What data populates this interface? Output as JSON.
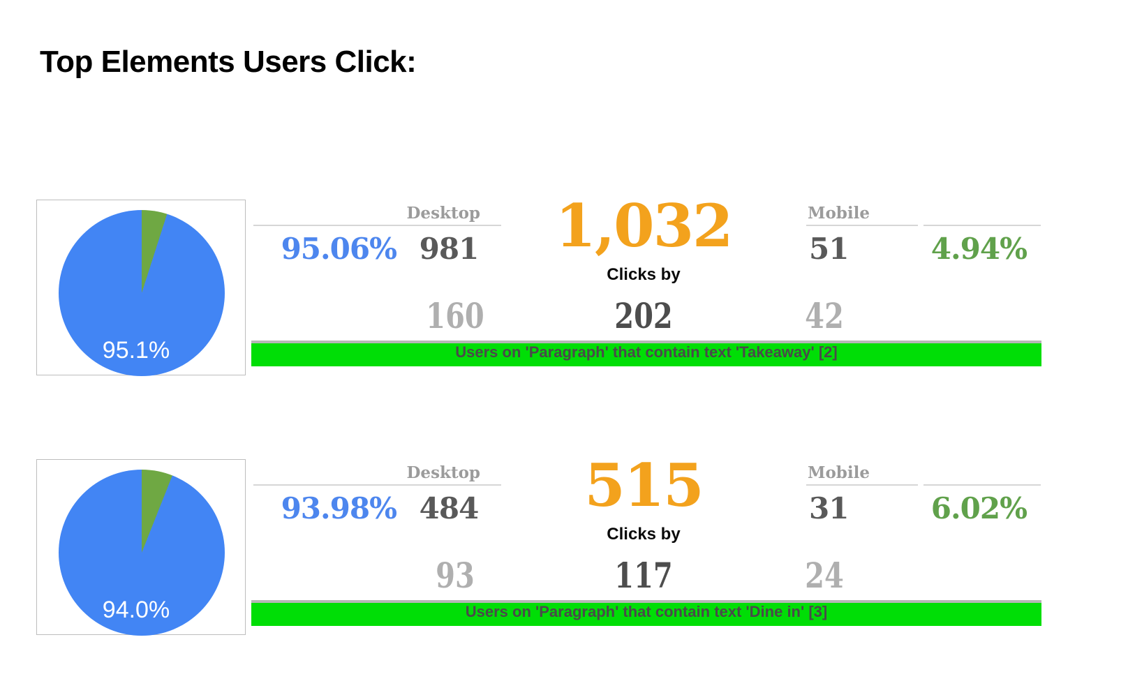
{
  "title": "Top Elements Users Click:",
  "colors": {
    "pie_blue": "#4285F4",
    "pie_green": "#6FA843",
    "accent_orange": "#F3A21D",
    "pct_blue": "#4D86EE",
    "pct_green": "#60A14B",
    "dark_gray": "#595959",
    "light_gray": "#AFAFAF",
    "header_gray": "#9B9B9B",
    "line_gray": "#D6D6D6",
    "banner_line": "#B6B6B6",
    "card_border": "#BDBDBD",
    "banner_green": "#00DE06",
    "banner_text": "#4A4A4A"
  },
  "rows": [
    {
      "pie": {
        "label": "95.1%",
        "green_pct": 4.94
      },
      "desktop": {
        "header": "Desktop",
        "pct": "95.06%",
        "clicks": "981",
        "users": "160"
      },
      "total": {
        "clicks": "1,032",
        "label": "Clicks by",
        "users": "202"
      },
      "mobile": {
        "header": "Mobile",
        "clicks": "51",
        "pct": "4.94%",
        "users": "42"
      },
      "banner": "Users on 'Paragraph' that contain text 'Takeaway' [2]"
    },
    {
      "pie": {
        "label": "94.0%",
        "green_pct": 6.02
      },
      "desktop": {
        "header": "Desktop",
        "pct": "93.98%",
        "clicks": "484",
        "users": "93"
      },
      "total": {
        "clicks": "515",
        "label": "Clicks by",
        "users": "117"
      },
      "mobile": {
        "header": "Mobile",
        "clicks": "31",
        "pct": "6.02%",
        "users": "24"
      },
      "banner": "Users on 'Paragraph' that contain text 'Dine in' [3]"
    }
  ],
  "chart_data": [
    {
      "type": "pie",
      "title": "Users on 'Paragraph' that contain text 'Takeaway' [2]",
      "labels": [
        "Desktop",
        "Mobile"
      ],
      "values": [
        95.06,
        4.94
      ],
      "colors": [
        "#4285F4",
        "#6FA843"
      ],
      "pie_label": "95.1%",
      "legend_position": "none",
      "scorecards": {
        "desktop_share_pct": 95.06,
        "desktop_clicks": 981,
        "total_clicks": 1032,
        "mobile_clicks": 51,
        "mobile_share_pct": 4.94,
        "desktop_users": 160,
        "total_users": 202,
        "mobile_users": 42
      }
    },
    {
      "type": "pie",
      "title": "Users on 'Paragraph' that contain text 'Dine in' [3]",
      "labels": [
        "Desktop",
        "Mobile"
      ],
      "values": [
        93.98,
        6.02
      ],
      "colors": [
        "#4285F4",
        "#6FA843"
      ],
      "pie_label": "94.0%",
      "legend_position": "none",
      "scorecards": {
        "desktop_share_pct": 93.98,
        "desktop_clicks": 484,
        "total_clicks": 515,
        "mobile_clicks": 31,
        "mobile_share_pct": 6.02,
        "desktop_users": 93,
        "total_users": 117,
        "mobile_users": 24
      }
    }
  ]
}
